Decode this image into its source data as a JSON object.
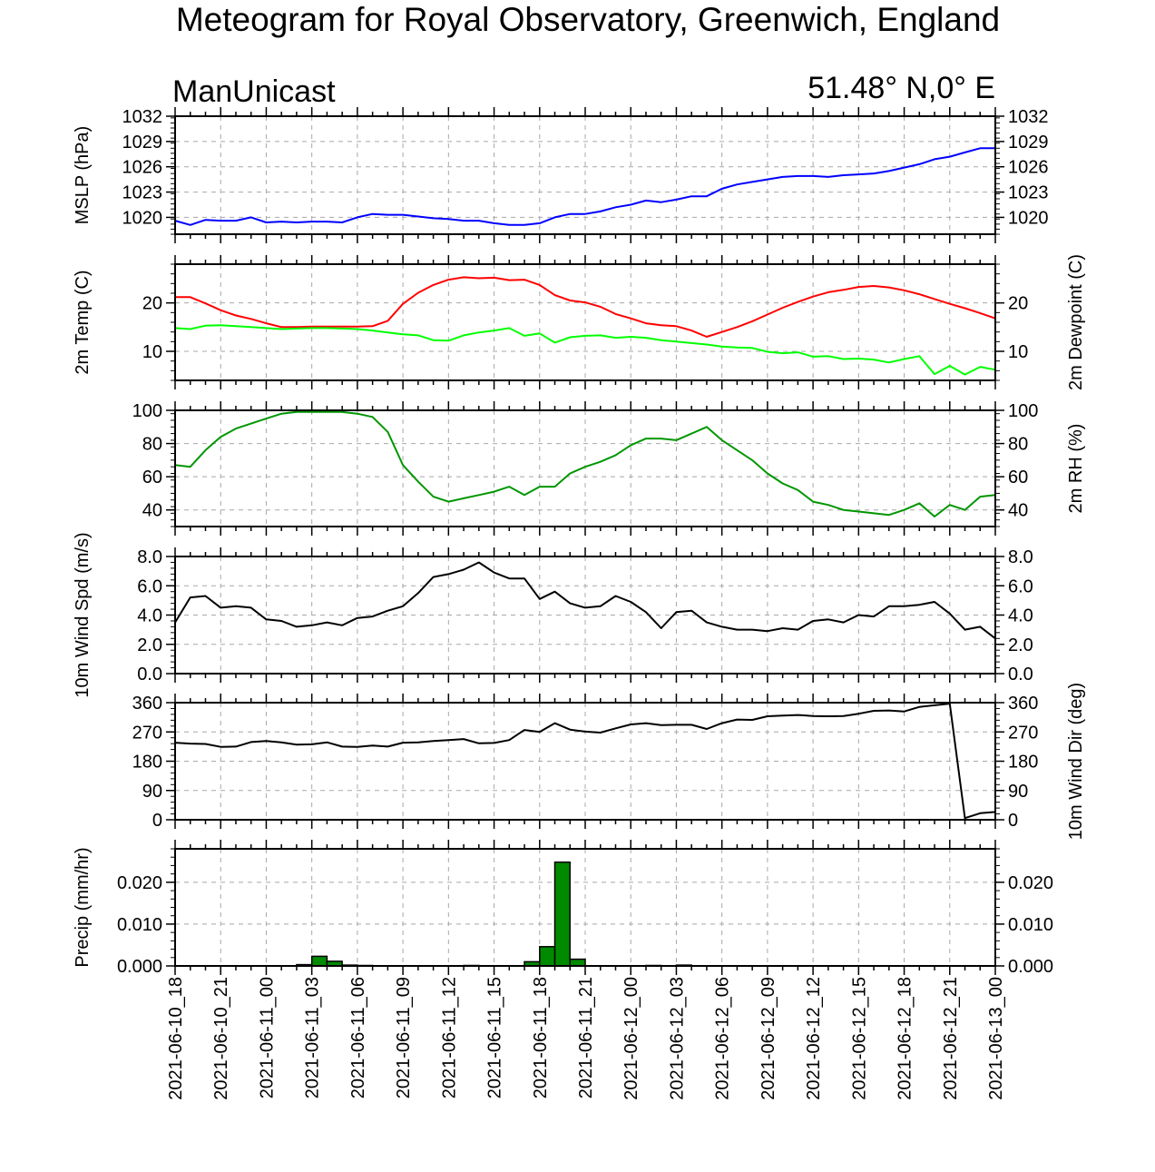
{
  "title": "Meteogram for Royal Observatory, Greenwich, England",
  "model": "ManUnicast",
  "location": "51.48° N,0° E",
  "colors": {
    "mslp": "#0000ff",
    "temp": "#ff0000",
    "dewpoint": "#00ff00",
    "rh": "#009600",
    "wind": "#000000",
    "precip": "#008a00",
    "grid": "#a8a8a8"
  },
  "x_ticks": [
    "2021-06-10_18",
    "2021-06-10_21",
    "2021-06-11_00",
    "2021-06-11_03",
    "2021-06-11_06",
    "2021-06-11_09",
    "2021-06-11_12",
    "2021-06-11_15",
    "2021-06-11_18",
    "2021-06-11_21",
    "2021-06-12_00",
    "2021-06-12_03",
    "2021-06-12_06",
    "2021-06-12_09",
    "2021-06-12_12",
    "2021-06-12_15",
    "2021-06-12_18",
    "2021-06-12_21",
    "2021-06-13_00"
  ],
  "chart_data": [
    {
      "type": "line",
      "ylabel_left": "MSLP (hPa)",
      "ylabel_right": "",
      "ylim": [
        1018,
        1032
      ],
      "yticks": [
        1020,
        1023,
        1026,
        1029,
        1032
      ],
      "ytick_labels": [
        "1020",
        "1023",
        "1026",
        "1029",
        "1032"
      ],
      "right_tick_labels": true,
      "grid": true,
      "series": [
        {
          "color_key": "mslp",
          "values": [
            1019.6,
            1019.1,
            1019.7,
            1019.6,
            1019.6,
            1020.0,
            1019.4,
            1019.5,
            1019.4,
            1019.5,
            1019.5,
            1019.4,
            1020.0,
            1020.4,
            1020.3,
            1020.3,
            1020.1,
            1019.9,
            1019.8,
            1019.6,
            1019.6,
            1019.3,
            1019.1,
            1019.1,
            1019.3,
            1020.0,
            1020.4,
            1020.4,
            1020.7,
            1021.2,
            1021.5,
            1022.0,
            1021.8,
            1022.1,
            1022.5,
            1022.5,
            1023.4,
            1023.9,
            1024.2,
            1024.5,
            1024.8,
            1024.9,
            1024.9,
            1024.8,
            1025.0,
            1025.1,
            1025.2,
            1025.5,
            1025.9,
            1026.3,
            1026.9,
            1027.2,
            1027.7,
            1028.2,
            1028.2
          ]
        }
      ]
    },
    {
      "type": "line",
      "ylabel_left": "2m Temp (C)",
      "ylabel_right": "2m Dewpoint (C)",
      "ylim": [
        4,
        28
      ],
      "yticks": [
        10,
        20
      ],
      "ytick_labels": [
        "10",
        "20"
      ],
      "right_tick_labels": true,
      "grid": true,
      "series": [
        {
          "color_key": "temp",
          "values": [
            21.2,
            21.2,
            19.9,
            18.5,
            17.4,
            16.7,
            15.8,
            15.0,
            15.0,
            15.1,
            15.1,
            15.1,
            15.1,
            15.2,
            16.3,
            19.8,
            22.1,
            23.7,
            24.8,
            25.3,
            25.1,
            25.2,
            24.7,
            24.8,
            23.7,
            21.6,
            20.5,
            20.1,
            19.2,
            17.7,
            16.8,
            15.8,
            15.4,
            15.2,
            14.3,
            13.0,
            14.0,
            15.0,
            16.2,
            17.6,
            19.0,
            20.2,
            21.3,
            22.2,
            22.7,
            23.3,
            23.5,
            23.2,
            22.6,
            21.8,
            20.8,
            19.8,
            18.9,
            17.9,
            16.8
          ]
        },
        {
          "color_key": "dewpoint",
          "values": [
            14.8,
            14.6,
            15.3,
            15.4,
            15.2,
            15.0,
            14.8,
            14.6,
            14.7,
            14.8,
            14.8,
            14.7,
            14.6,
            14.3,
            13.9,
            13.5,
            13.3,
            12.3,
            12.2,
            13.3,
            13.9,
            14.3,
            14.8,
            13.2,
            13.7,
            11.8,
            12.9,
            13.2,
            13.3,
            12.8,
            13.0,
            12.8,
            12.3,
            12.0,
            11.7,
            11.4,
            11.0,
            10.8,
            10.7,
            9.9,
            9.6,
            9.8,
            8.9,
            9.0,
            8.4,
            8.5,
            8.3,
            7.7,
            8.4,
            9.0,
            5.3,
            7.0,
            5.2,
            6.8,
            6.2
          ]
        }
      ]
    },
    {
      "type": "line",
      "ylabel_left": "",
      "ylabel_right": "2m RH (%)",
      "ylim": [
        30,
        100
      ],
      "yticks": [
        40,
        60,
        80,
        100
      ],
      "ytick_labels": [
        "40",
        "60",
        "80",
        "100"
      ],
      "right_tick_labels": true,
      "grid": true,
      "series": [
        {
          "color_key": "rh",
          "values": [
            67,
            66,
            76,
            84,
            89,
            92,
            95,
            98,
            99,
            99,
            99,
            99,
            98,
            96,
            87,
            67,
            57,
            48,
            45,
            47,
            49,
            51,
            54,
            49,
            54,
            54,
            62,
            66,
            69,
            73,
            79,
            83,
            83,
            82,
            86,
            90,
            82,
            76,
            70,
            62,
            56,
            52,
            45,
            43,
            40,
            39,
            38,
            37,
            40,
            44,
            36,
            43,
            40,
            48,
            49
          ]
        }
      ]
    },
    {
      "type": "line",
      "ylabel_left": "10m Wind Spd (m/s)",
      "ylabel_right": "",
      "ylim": [
        0,
        8
      ],
      "yticks": [
        0,
        2,
        4,
        6,
        8
      ],
      "ytick_labels": [
        "0.0",
        "2.0",
        "4.0",
        "6.0",
        "8.0"
      ],
      "right_tick_labels": true,
      "grid": true,
      "series": [
        {
          "color_key": "wind",
          "values": [
            3.5,
            5.2,
            5.3,
            4.5,
            4.6,
            4.5,
            3.7,
            3.6,
            3.2,
            3.3,
            3.5,
            3.3,
            3.8,
            3.9,
            4.3,
            4.6,
            5.5,
            6.6,
            6.8,
            7.1,
            7.6,
            6.9,
            6.5,
            6.5,
            5.1,
            5.6,
            4.8,
            4.5,
            4.6,
            5.3,
            4.9,
            4.2,
            3.1,
            4.2,
            4.3,
            3.5,
            3.2,
            3.0,
            3.0,
            2.9,
            3.1,
            3.0,
            3.6,
            3.7,
            3.5,
            4.0,
            3.9,
            4.6,
            4.6,
            4.7,
            4.9,
            4.1,
            3.0,
            3.2,
            2.4
          ]
        }
      ]
    },
    {
      "type": "line",
      "ylabel_left": "",
      "ylabel_right": "10m Wind Dir (deg)",
      "ylim": [
        0,
        360
      ],
      "yticks": [
        0,
        90,
        180,
        270,
        360
      ],
      "ytick_labels": [
        "0",
        "90",
        "180",
        "270",
        "360"
      ],
      "right_tick_labels": true,
      "grid": true,
      "series": [
        {
          "color_key": "wind",
          "values": [
            237,
            234,
            233,
            224,
            225,
            239,
            242,
            238,
            231,
            232,
            238,
            225,
            224,
            228,
            225,
            237,
            238,
            242,
            245,
            248,
            235,
            236,
            245,
            276,
            270,
            297,
            277,
            271,
            268,
            281,
            293,
            297,
            291,
            292,
            292,
            279,
            297,
            308,
            307,
            318,
            320,
            322,
            319,
            318,
            319,
            326,
            335,
            336,
            333,
            347,
            352,
            357,
            5,
            20,
            24
          ]
        }
      ]
    },
    {
      "type": "bar",
      "ylabel_left": "Precip (mm/hr)",
      "ylabel_right": "",
      "ylim": [
        0,
        0.028
      ],
      "yticks": [
        0,
        0.01,
        0.02
      ],
      "ytick_labels": [
        "0.000",
        "0.010",
        "0.020"
      ],
      "right_tick_labels": true,
      "grid": true,
      "series": [
        {
          "color_key": "precip",
          "values": [
            0,
            0,
            0,
            0,
            0,
            0,
            0,
            0,
            0.0003,
            0.0023,
            0.0011,
            0.0002,
            0.0001,
            0,
            0,
            0,
            0,
            0,
            0,
            0.0001,
            0,
            0,
            0,
            0.001,
            0.0046,
            0.0248,
            0.0016,
            0,
            0,
            0,
            0,
            0.0001,
            0,
            0.0002,
            0,
            0,
            0,
            0,
            0,
            0,
            0,
            0,
            0,
            0,
            0,
            0,
            0,
            0,
            0,
            0,
            0,
            0,
            0,
            0
          ]
        }
      ]
    }
  ]
}
